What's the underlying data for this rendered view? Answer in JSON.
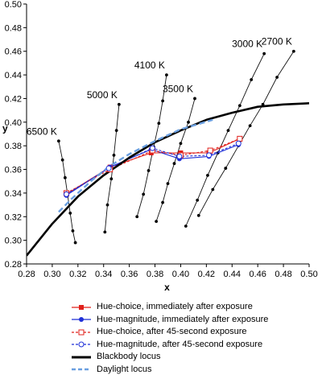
{
  "chart_data": {
    "type": "line",
    "title": "",
    "xlabel": "x",
    "ylabel": "y",
    "xlim": [
      0.28,
      0.5
    ],
    "ylim": [
      0.28,
      0.5
    ],
    "xticks": [
      "0.28",
      "0.30",
      "0.32",
      "0.34",
      "0.36",
      "0.38",
      "0.40",
      "0.42",
      "0.44",
      "0.46",
      "0.48",
      "0.50"
    ],
    "yticks": [
      "0.28",
      "0.30",
      "0.32",
      "0.34",
      "0.36",
      "0.38",
      "0.40",
      "0.42",
      "0.44",
      "0.46",
      "0.48",
      "0.50"
    ],
    "grid": false,
    "legend_position": "bottom",
    "iso_temperature_lines": [
      {
        "label": "6500 K",
        "points": [
          [
            0.305,
            0.384
          ],
          [
            0.308,
            0.368
          ],
          [
            0.31,
            0.353
          ],
          [
            0.312,
            0.338
          ],
          [
            0.314,
            0.323
          ],
          [
            0.316,
            0.308
          ],
          [
            0.318,
            0.298
          ]
        ]
      },
      {
        "label": "5000 K",
        "points": [
          [
            0.352,
            0.415
          ],
          [
            0.35,
            0.393
          ],
          [
            0.348,
            0.372
          ],
          [
            0.346,
            0.352
          ],
          [
            0.343,
            0.33
          ],
          [
            0.341,
            0.307
          ]
        ]
      },
      {
        "label": "4100 K",
        "points": [
          [
            0.389,
            0.44
          ],
          [
            0.386,
            0.418
          ],
          [
            0.383,
            0.399
          ],
          [
            0.379,
            0.379
          ],
          [
            0.375,
            0.359
          ],
          [
            0.371,
            0.339
          ],
          [
            0.366,
            0.32
          ]
        ]
      },
      {
        "label": "3500 K",
        "points": [
          [
            0.411,
            0.42
          ],
          [
            0.406,
            0.4
          ],
          [
            0.4,
            0.382
          ],
          [
            0.395,
            0.365
          ],
          [
            0.39,
            0.348
          ],
          [
            0.386,
            0.332
          ],
          [
            0.381,
            0.316
          ]
        ]
      },
      {
        "label": "3000 K",
        "points": [
          [
            0.465,
            0.458
          ],
          [
            0.455,
            0.436
          ],
          [
            0.446,
            0.414
          ],
          [
            0.437,
            0.393
          ],
          [
            0.429,
            0.374
          ],
          [
            0.421,
            0.355
          ],
          [
            0.413,
            0.334
          ],
          [
            0.404,
            0.312
          ]
        ]
      },
      {
        "label": "2700 K",
        "points": [
          [
            0.488,
            0.46
          ],
          [
            0.475,
            0.438
          ],
          [
            0.464,
            0.415
          ],
          [
            0.454,
            0.397
          ],
          [
            0.445,
            0.38
          ],
          [
            0.435,
            0.361
          ],
          [
            0.425,
            0.343
          ],
          [
            0.414,
            0.321
          ]
        ]
      }
    ],
    "series": [
      {
        "name": "Hue-choice, immediately after exposure",
        "color": "#e0201b",
        "style": "solid",
        "marker": "filled-square",
        "x": [
          0.311,
          0.345,
          0.377,
          0.4,
          0.422,
          0.446
        ],
        "y": [
          0.339,
          0.362,
          0.374,
          0.374,
          0.374,
          0.386
        ]
      },
      {
        "name": "Hue-magnitude, immediately after exposure",
        "color": "#1f2fd8",
        "style": "solid",
        "marker": "filled-circle",
        "x": [
          0.311,
          0.345,
          0.377,
          0.399,
          0.422,
          0.445
        ],
        "y": [
          0.338,
          0.362,
          0.377,
          0.369,
          0.371,
          0.381
        ]
      },
      {
        "name": "Hue-choice, after 45-second exposure",
        "color": "#e0201b",
        "style": "dashed",
        "marker": "open-square",
        "x": [
          0.311,
          0.345,
          0.378,
          0.4,
          0.423,
          0.446
        ],
        "y": [
          0.34,
          0.36,
          0.376,
          0.372,
          0.376,
          0.386
        ]
      },
      {
        "name": "Hue-magnitude, after 45-second exposure",
        "color": "#1f2fd8",
        "style": "dashed",
        "marker": "open-circle",
        "x": [
          0.311,
          0.344,
          0.378,
          0.399,
          0.422,
          0.445
        ],
        "y": [
          0.339,
          0.361,
          0.378,
          0.371,
          0.372,
          0.382
        ]
      },
      {
        "name": "Blackbody locus",
        "color": "#000000",
        "style": "solid-thick",
        "marker": "none",
        "x": [
          0.28,
          0.3,
          0.32,
          0.34,
          0.36,
          0.38,
          0.4,
          0.42,
          0.44,
          0.46,
          0.48,
          0.5
        ],
        "y": [
          0.287,
          0.314,
          0.337,
          0.355,
          0.37,
          0.383,
          0.393,
          0.402,
          0.408,
          0.413,
          0.415,
          0.416
        ]
      },
      {
        "name": "Daylight locus",
        "color": "#6a9fe0",
        "style": "dashed",
        "marker": "none",
        "x": [
          0.305,
          0.315,
          0.33,
          0.345,
          0.36,
          0.38,
          0.4,
          0.425
        ],
        "y": [
          0.324,
          0.335,
          0.35,
          0.363,
          0.373,
          0.384,
          0.394,
          0.402
        ]
      }
    ]
  }
}
